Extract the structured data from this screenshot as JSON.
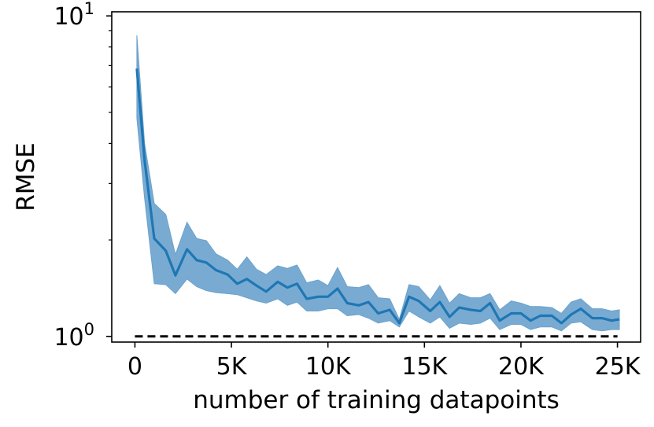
{
  "chart_data": {
    "type": "line",
    "title": "",
    "xlabel": "number of training datapoints",
    "ylabel": "RMSE",
    "y_scale": "log",
    "xlim": [
      -1200,
      26200
    ],
    "ylim": [
      0.96,
      10.3
    ],
    "x_ticks": [
      {
        "value": 0,
        "label": "0"
      },
      {
        "value": 5000,
        "label": "5K"
      },
      {
        "value": 10000,
        "label": "10K"
      },
      {
        "value": 15000,
        "label": "15K"
      },
      {
        "value": 20000,
        "label": "20K"
      },
      {
        "value": 25000,
        "label": "25K"
      }
    ],
    "y_ticks": [
      {
        "value": 1,
        "base": "10",
        "exponent": "0"
      },
      {
        "value": 10,
        "base": "10",
        "exponent": "1"
      }
    ],
    "grid": false,
    "colors": {
      "line": "#1f77b4",
      "band": "#6aa2cd",
      "baseline": "#000000"
    },
    "baseline": {
      "y": 1.0,
      "x_range": [
        0,
        25000
      ],
      "style": "dashed"
    },
    "series": [
      {
        "x": [
          100,
          500,
          1000,
          1600,
          2100,
          2700,
          3200,
          3700,
          4200,
          4800,
          5300,
          5800,
          6300,
          6800,
          7400,
          7900,
          8400,
          8900,
          9500,
          10000,
          10500,
          11000,
          11600,
          12100,
          12600,
          13200,
          13700,
          14200,
          14700,
          15300,
          15800,
          16300,
          16800,
          17400,
          17900,
          18400,
          18900,
          19500,
          20000,
          20500,
          21000,
          21600,
          22100,
          22600,
          23100,
          23700,
          24200,
          24700,
          25100
        ],
        "y": [
          6.85,
          3.55,
          2.02,
          1.85,
          1.55,
          1.87,
          1.73,
          1.7,
          1.61,
          1.56,
          1.46,
          1.51,
          1.44,
          1.38,
          1.48,
          1.42,
          1.46,
          1.31,
          1.33,
          1.33,
          1.41,
          1.27,
          1.25,
          1.28,
          1.18,
          1.21,
          1.1,
          1.33,
          1.29,
          1.2,
          1.28,
          1.15,
          1.23,
          1.21,
          1.2,
          1.27,
          1.12,
          1.18,
          1.18,
          1.12,
          1.16,
          1.16,
          1.1,
          1.17,
          1.22,
          1.14,
          1.14,
          1.12,
          1.13
        ],
        "upper": [
          8.7,
          4.0,
          2.6,
          2.4,
          1.8,
          2.27,
          2.02,
          1.99,
          1.81,
          1.73,
          1.62,
          1.77,
          1.62,
          1.56,
          1.66,
          1.63,
          1.67,
          1.47,
          1.5,
          1.44,
          1.64,
          1.43,
          1.42,
          1.45,
          1.32,
          1.31,
          1.13,
          1.45,
          1.43,
          1.3,
          1.44,
          1.27,
          1.36,
          1.32,
          1.32,
          1.36,
          1.21,
          1.29,
          1.27,
          1.24,
          1.24,
          1.23,
          1.18,
          1.28,
          1.31,
          1.22,
          1.22,
          1.2,
          1.21
        ],
        "lower": [
          4.8,
          2.7,
          1.46,
          1.45,
          1.36,
          1.51,
          1.43,
          1.39,
          1.37,
          1.36,
          1.35,
          1.32,
          1.29,
          1.27,
          1.31,
          1.25,
          1.28,
          1.2,
          1.2,
          1.22,
          1.22,
          1.16,
          1.17,
          1.14,
          1.1,
          1.12,
          1.07,
          1.2,
          1.15,
          1.1,
          1.15,
          1.06,
          1.1,
          1.09,
          1.1,
          1.14,
          1.05,
          1.09,
          1.09,
          1.05,
          1.07,
          1.07,
          1.04,
          1.1,
          1.11,
          1.05,
          1.04,
          1.05,
          1.05
        ]
      }
    ]
  }
}
